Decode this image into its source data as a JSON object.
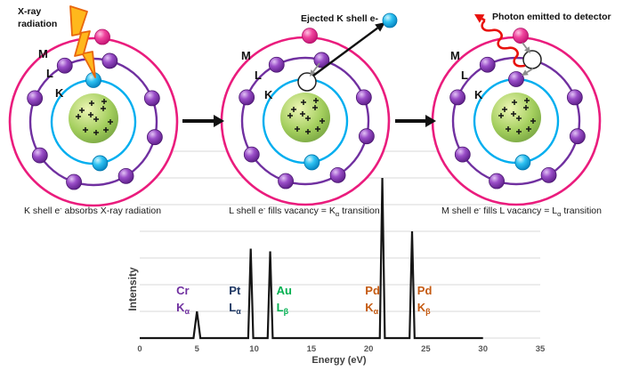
{
  "panels": [
    {
      "annotation": {
        "line1": "X-ray",
        "line2": "radiation"
      },
      "shell_labels": {
        "m": "M",
        "l": "L",
        "k": "K"
      },
      "caption": {
        "pre": "K shell e",
        "sup": "-",
        "mid": " absorbs X-ray radiation",
        "sub": "",
        "post": ""
      }
    },
    {
      "annotation": {
        "label": "Ejected K shell e-"
      },
      "shell_labels": {
        "m": "M",
        "l": "L",
        "k": "K"
      },
      "caption": {
        "pre": "L shell e",
        "sup": "-",
        "mid": " fills vacancy = K",
        "sub": "α",
        "post": " transition"
      }
    },
    {
      "annotation": {
        "label": "Photon emitted to detector"
      },
      "shell_labels": {
        "m": "M",
        "l": "L",
        "k": "K"
      },
      "caption": {
        "pre": "M shell e",
        "sup": "-",
        "mid": " fills L vacancy = L",
        "sub": "α",
        "post": " transition"
      }
    }
  ],
  "colors": {
    "m_shell": "#EA1C7D",
    "l_shell": "#7030A0",
    "k_shell": "#00AEEF",
    "xray_bolt": "#FFB81C",
    "xray_bolt_outline": "#E8650D",
    "photon_red": "#E8100C",
    "arrow_black": "#111111",
    "arrow_gray": "#8C8C8C"
  },
  "chart_data": {
    "type": "line",
    "title": "",
    "xlabel": "Energy (eV)",
    "ylabel": "Intensity",
    "xlim": [
      0,
      35
    ],
    "ylim": [
      0,
      7
    ],
    "x_ticks": [
      0,
      5,
      10,
      15,
      20,
      25,
      30,
      35
    ],
    "gridlines_y": [
      1,
      2,
      3,
      4,
      5,
      6,
      7
    ],
    "grid_on": true,
    "legend": "none",
    "baseline_end_x": 30,
    "peaks": [
      {
        "element": "Cr",
        "line": "K",
        "line_sub": "α",
        "energy": 5.0,
        "intensity": 1.0,
        "half_width": 0.3,
        "label_color": "#7030A0",
        "label_offset_ev": -1.8
      },
      {
        "element": "Pt",
        "line": "L",
        "line_sub": "α",
        "energy": 9.7,
        "intensity": 3.35,
        "half_width": 0.22,
        "label_color": "#1F3864",
        "label_offset_ev": -1.9
      },
      {
        "element": "Au",
        "line": "L",
        "line_sub": "β",
        "energy": 11.4,
        "intensity": 3.25,
        "half_width": 0.22,
        "label_color": "#00B050",
        "label_offset_ev": 0.55
      },
      {
        "element": "Pd",
        "line": "K",
        "line_sub": "α",
        "energy": 21.2,
        "intensity": 6.0,
        "half_width": 0.22,
        "label_color": "#C55A11",
        "label_offset_ev": -1.5
      },
      {
        "element": "Pd",
        "line": "K",
        "line_sub": "β",
        "energy": 23.8,
        "intensity": 4.0,
        "half_width": 0.22,
        "label_color": "#C55A11",
        "label_offset_ev": 0.45
      }
    ],
    "line_color": "#161616",
    "grid_color": "#D9D9D9",
    "axis_text_color": "#595959"
  }
}
